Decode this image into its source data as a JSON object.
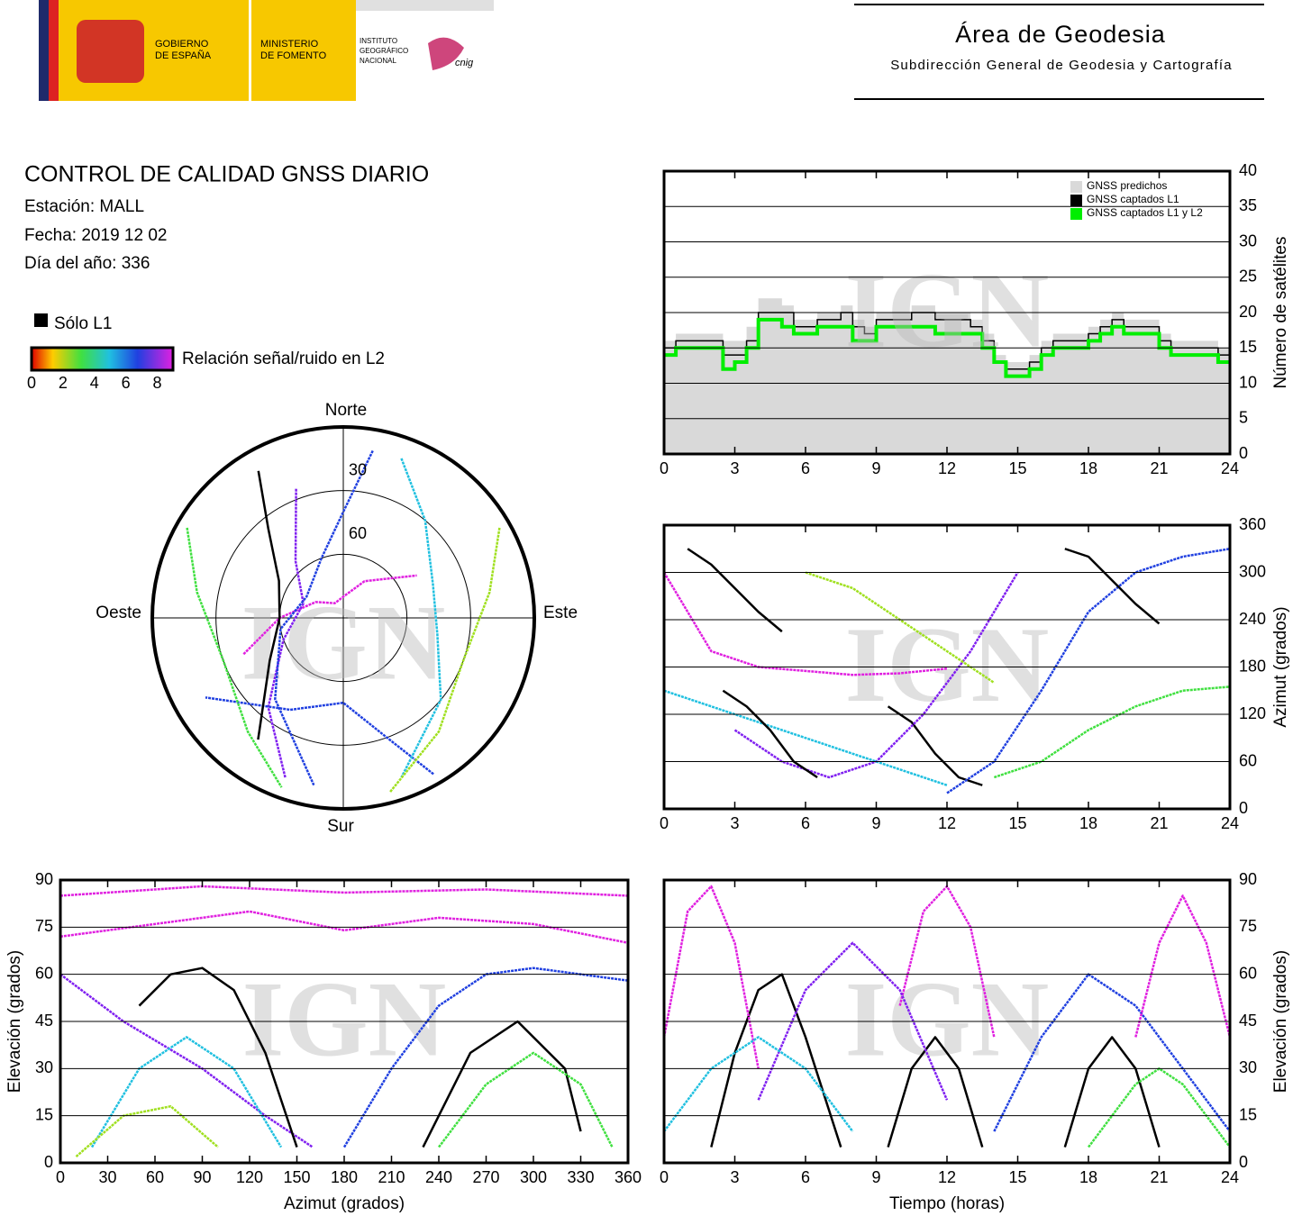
{
  "header": {
    "title": "Área de Geodesia",
    "subtitle": "Subdirección General de Geodesia y Cartografía",
    "government": [
      "GOBIERNO",
      "DE ESPAÑA"
    ],
    "ministry": [
      "MINISTERIO",
      "DE FOMENTO"
    ],
    "institute": [
      "INSTITUTO",
      "GEOGRÁFICO",
      "NACIONAL"
    ],
    "cnig": "cnig"
  },
  "report": {
    "title": "CONTROL DE CALIDAD GNSS DIARIO",
    "station": "Estación: MALL",
    "date": "Fecha: 2019 12 02",
    "doy": "Día del año: 336"
  },
  "legend": {
    "l1_only": "Sólo L1",
    "snr_label": "Relación señal/ruido en L2",
    "snr_range": [
      0,
      9
    ],
    "snr_ticks": [
      0,
      2,
      4,
      6,
      8
    ]
  },
  "watermark": "IGN",
  "chart_data": [
    {
      "type": "step",
      "ylabel": "Número de satélites",
      "y_axis_side": "right",
      "grid": true,
      "legend_position": "top-right",
      "xlim": [
        0,
        24
      ],
      "xticks": [
        0,
        3,
        6,
        9,
        12,
        15,
        18,
        21,
        24
      ],
      "ylim": [
        0,
        40
      ],
      "yticks": [
        0,
        5,
        10,
        15,
        20,
        25,
        30,
        35,
        40
      ],
      "x": [
        0,
        0.5,
        1,
        1.5,
        2,
        2.5,
        3,
        3.5,
        4,
        4.5,
        5,
        5.5,
        6,
        6.5,
        7,
        7.5,
        8,
        8.5,
        9,
        9.5,
        10,
        10.5,
        11,
        11.5,
        12,
        12.5,
        13,
        13.5,
        14,
        14.5,
        15,
        15.5,
        16,
        16.5,
        17,
        17.5,
        18,
        18.5,
        19,
        19.5,
        20,
        20.5,
        21,
        21.5,
        22,
        22.5,
        23,
        23.5,
        24
      ],
      "series": [
        {
          "name": "GNSS predichos",
          "color": "#d9d9d9",
          "style": "area",
          "values": [
            16,
            17,
            17,
            17,
            17,
            16,
            16,
            18,
            22,
            22,
            21,
            19,
            19,
            20,
            20,
            21,
            19,
            18,
            20,
            20,
            20,
            21,
            21,
            20,
            20,
            20,
            19,
            17,
            14,
            13,
            13,
            14,
            16,
            17,
            17,
            17,
            18,
            19,
            20,
            19,
            19,
            19,
            17,
            16,
            16,
            16,
            16,
            15,
            15
          ]
        },
        {
          "name": "GNSS captados L1",
          "color": "#000000",
          "style": "line",
          "values": [
            15,
            16,
            16,
            16,
            16,
            14,
            14,
            16,
            20,
            20,
            20,
            18,
            18,
            19,
            19,
            20,
            18,
            17,
            19,
            19,
            19,
            20,
            20,
            19,
            19,
            19,
            18,
            16,
            13,
            12,
            12,
            13,
            15,
            16,
            16,
            16,
            17,
            18,
            19,
            18,
            18,
            18,
            16,
            15,
            15,
            15,
            15,
            14,
            14
          ]
        },
        {
          "name": "GNSS captados L1 y L2",
          "color": "#00ee00",
          "style": "line",
          "values": [
            14,
            15,
            15,
            15,
            15,
            12,
            13,
            15,
            19,
            19,
            18,
            17,
            17,
            18,
            18,
            18,
            16,
            16,
            18,
            18,
            18,
            18,
            18,
            17,
            17,
            17,
            17,
            15,
            13,
            11,
            11,
            12,
            14,
            15,
            15,
            15,
            16,
            17,
            18,
            17,
            17,
            17,
            15,
            14,
            14,
            14,
            14,
            13,
            13
          ]
        }
      ]
    },
    {
      "type": "polar",
      "north": "Norte",
      "south": "Sur",
      "east": "Este",
      "west": "Oeste",
      "rlim": [
        0,
        90
      ],
      "rticks": [
        30,
        60
      ],
      "series": [
        {
          "color": "#e020e0",
          "azimuth": [
            250,
            270,
            300,
            330,
            0,
            30,
            60
          ],
          "elevation": [
            40,
            60,
            75,
            82,
            80,
            70,
            50
          ]
        },
        {
          "color": "#8020f0",
          "azimuth": [
            200,
            220,
            250,
            290,
            320,
            340
          ],
          "elevation": [
            10,
            35,
            60,
            70,
            55,
            25
          ]
        },
        {
          "color": "#2040e0",
          "azimuth": [
            150,
            160,
            180,
            210,
            240
          ],
          "elevation": [
            5,
            30,
            50,
            40,
            15
          ]
        },
        {
          "color": "#20c0e0",
          "azimuth": [
            20,
            40,
            70,
            100,
            130,
            160
          ],
          "elevation": [
            10,
            30,
            45,
            45,
            30,
            10
          ]
        },
        {
          "color": "#40e040",
          "azimuth": [
            300,
            280,
            250,
            220,
            200
          ],
          "elevation": [
            5,
            20,
            30,
            20,
            5
          ]
        },
        {
          "color": "#000000",
          "azimuth": [
            330,
            320,
            300,
            270,
            240,
            215
          ],
          "elevation": [
            10,
            35,
            55,
            60,
            50,
            20
          ]
        },
        {
          "color": "#a0e020",
          "azimuth": [
            60,
            80,
            110,
            140,
            165
          ],
          "elevation": [
            5,
            20,
            30,
            20,
            5
          ]
        },
        {
          "color": "#2040e0",
          "azimuth": [
            10,
            0,
            340,
            300,
            260,
            220,
            190
          ],
          "elevation": [
            10,
            40,
            60,
            70,
            60,
            40,
            10
          ]
        }
      ]
    },
    {
      "type": "line",
      "ylabel": "Azimut (grados)",
      "y_axis_side": "right",
      "grid": true,
      "xlim": [
        0,
        24
      ],
      "xticks": [
        0,
        3,
        6,
        9,
        12,
        15,
        18,
        21,
        24
      ],
      "ylim": [
        0,
        360
      ],
      "yticks": [
        0,
        60,
        120,
        180,
        240,
        300,
        360
      ],
      "series": [
        {
          "color": "#000000",
          "x": [
            1,
            2,
            3,
            4,
            5
          ],
          "values": [
            330,
            310,
            280,
            250,
            225
          ]
        },
        {
          "color": "#000000",
          "x": [
            9.5,
            10.5,
            11.5,
            12.5,
            13.5
          ],
          "values": [
            130,
            110,
            70,
            40,
            30
          ]
        },
        {
          "color": "#e020e0",
          "x": [
            0,
            2,
            4,
            6,
            8,
            10,
            12
          ],
          "values": [
            300,
            200,
            180,
            175,
            170,
            172,
            178
          ]
        },
        {
          "color": "#8020f0",
          "x": [
            3,
            5,
            7,
            9,
            11,
            13,
            15
          ],
          "values": [
            100,
            60,
            40,
            60,
            120,
            200,
            300
          ]
        },
        {
          "color": "#2040e0",
          "x": [
            12,
            14,
            16,
            18,
            20,
            22,
            24
          ],
          "values": [
            20,
            60,
            150,
            250,
            300,
            320,
            330
          ]
        },
        {
          "color": "#20c0e0",
          "x": [
            0,
            3,
            6,
            9,
            12
          ],
          "values": [
            150,
            120,
            90,
            60,
            30
          ]
        },
        {
          "color": "#40e040",
          "x": [
            14,
            16,
            18,
            20,
            22,
            24
          ],
          "values": [
            40,
            60,
            100,
            130,
            150,
            155
          ]
        },
        {
          "color": "#a0e020",
          "x": [
            6,
            8,
            10,
            12,
            14
          ],
          "values": [
            300,
            280,
            240,
            200,
            160
          ]
        },
        {
          "color": "#000000",
          "x": [
            17,
            18,
            19,
            20,
            21
          ],
          "values": [
            330,
            320,
            290,
            260,
            235
          ]
        },
        {
          "color": "#000000",
          "x": [
            2.5,
            3.5,
            4.5,
            5.5,
            6.5
          ],
          "values": [
            150,
            130,
            100,
            60,
            40
          ]
        }
      ]
    },
    {
      "type": "line",
      "xlabel": "Azimut (grados)",
      "ylabel": "Elevación (grados)",
      "y_axis_side": "left",
      "grid": true,
      "xlim": [
        0,
        360
      ],
      "xticks": [
        0,
        30,
        60,
        90,
        120,
        150,
        180,
        210,
        240,
        270,
        300,
        330,
        360
      ],
      "ylim": [
        0,
        90
      ],
      "yticks": [
        0,
        15,
        30,
        45,
        60,
        75,
        90
      ],
      "series": [
        {
          "color": "#e020e0",
          "x": [
            0,
            60,
            120,
            180,
            240,
            300,
            360
          ],
          "values": [
            72,
            76,
            80,
            74,
            78,
            76,
            70
          ]
        },
        {
          "color": "#8020f0",
          "x": [
            0,
            40,
            90,
            130,
            160
          ],
          "values": [
            60,
            45,
            30,
            15,
            5
          ]
        },
        {
          "color": "#000000",
          "x": [
            50,
            70,
            90,
            110,
            130,
            150
          ],
          "values": [
            50,
            60,
            62,
            55,
            35,
            5
          ]
        },
        {
          "color": "#000000",
          "x": [
            230,
            260,
            290,
            320,
            330
          ],
          "values": [
            5,
            35,
            45,
            30,
            10
          ]
        },
        {
          "color": "#2040e0",
          "x": [
            180,
            210,
            240,
            270,
            300,
            330,
            360
          ],
          "values": [
            5,
            30,
            50,
            60,
            62,
            60,
            58
          ]
        },
        {
          "color": "#20c0e0",
          "x": [
            20,
            50,
            80,
            110,
            140
          ],
          "values": [
            5,
            30,
            40,
            30,
            5
          ]
        },
        {
          "color": "#40e040",
          "x": [
            240,
            270,
            300,
            330,
            350
          ],
          "values": [
            5,
            25,
            35,
            25,
            5
          ]
        },
        {
          "color": "#a0e020",
          "x": [
            10,
            40,
            70,
            100
          ],
          "values": [
            2,
            15,
            18,
            5
          ]
        },
        {
          "color": "#e020e0",
          "x": [
            0,
            90,
            180,
            270,
            360
          ],
          "values": [
            85,
            88,
            86,
            87,
            85
          ]
        }
      ]
    },
    {
      "type": "line",
      "xlabel": "Tiempo (horas)",
      "ylabel": "Elevación (grados)",
      "y_axis_side": "right",
      "grid": true,
      "xlim": [
        0,
        24
      ],
      "xticks": [
        0,
        3,
        6,
        9,
        12,
        15,
        18,
        21,
        24
      ],
      "ylim": [
        0,
        90
      ],
      "yticks": [
        0,
        15,
        30,
        45,
        60,
        75,
        90
      ],
      "series": [
        {
          "color": "#000000",
          "x": [
            2,
            3,
            4,
            5,
            6,
            7.5
          ],
          "values": [
            5,
            35,
            55,
            60,
            40,
            5
          ]
        },
        {
          "color": "#000000",
          "x": [
            9.5,
            10.5,
            11.5,
            12.5,
            13.5
          ],
          "values": [
            5,
            30,
            40,
            30,
            5
          ]
        },
        {
          "color": "#000000",
          "x": [
            17,
            18,
            19,
            20,
            21
          ],
          "values": [
            5,
            30,
            40,
            30,
            5
          ]
        },
        {
          "color": "#e020e0",
          "x": [
            0,
            1,
            2,
            3,
            4
          ],
          "values": [
            40,
            80,
            88,
            70,
            30
          ]
        },
        {
          "color": "#e020e0",
          "x": [
            10,
            11,
            12,
            13,
            14
          ],
          "values": [
            50,
            80,
            88,
            75,
            40
          ]
        },
        {
          "color": "#8020f0",
          "x": [
            4,
            6,
            8,
            10,
            12
          ],
          "values": [
            20,
            55,
            70,
            55,
            20
          ]
        },
        {
          "color": "#2040e0",
          "x": [
            14,
            16,
            18,
            20,
            22,
            24
          ],
          "values": [
            10,
            40,
            60,
            50,
            30,
            10
          ]
        },
        {
          "color": "#20c0e0",
          "x": [
            0,
            2,
            4,
            6,
            8
          ],
          "values": [
            10,
            30,
            40,
            30,
            10
          ]
        },
        {
          "color": "#40e040",
          "x": [
            18,
            19,
            20,
            21,
            22,
            23,
            24
          ],
          "values": [
            5,
            15,
            25,
            30,
            25,
            15,
            5
          ]
        },
        {
          "color": "#e020e0",
          "x": [
            20,
            21,
            22,
            23,
            24
          ],
          "values": [
            40,
            70,
            85,
            70,
            40
          ]
        }
      ]
    }
  ]
}
